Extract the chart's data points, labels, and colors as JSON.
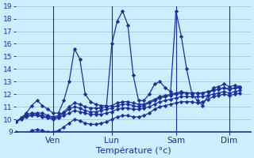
{
  "xlabel": "Température (°c)",
  "bg_color": "#cceeff",
  "grid_color": "#99ccdd",
  "line_color": "#1a2fa0",
  "ylim": [
    9,
    19
  ],
  "yticks": [
    9,
    10,
    11,
    12,
    13,
    14,
    15,
    16,
    17,
    18,
    19
  ],
  "xlim": [
    0,
    44
  ],
  "xtick_positions": [
    7,
    18,
    30,
    40
  ],
  "xtick_labels": [
    "Ven",
    "Lun",
    "Sam",
    "Dim"
  ],
  "vlines": [
    7,
    18,
    30,
    40
  ],
  "series": [
    [
      9.8,
      10.1,
      10.5,
      11.1,
      11.5,
      11.1,
      10.8,
      10.5,
      10.5,
      11.5,
      13.0,
      15.6,
      14.8,
      12.0,
      11.4,
      11.2,
      11.1,
      11.1,
      16.0,
      17.8,
      18.6,
      17.5,
      13.5,
      11.5,
      11.5,
      12.0,
      12.8,
      13.0,
      12.5,
      12.2,
      18.6,
      16.6,
      14.0,
      12.0,
      11.5,
      11.1,
      11.9,
      12.5,
      12.6,
      12.8,
      12.6,
      12.7,
      12.6
    ],
    [
      9.8,
      10.1,
      10.4,
      10.5,
      10.5,
      10.5,
      10.3,
      10.2,
      10.3,
      10.6,
      11.0,
      11.3,
      11.2,
      11.0,
      10.9,
      10.9,
      10.9,
      11.0,
      11.1,
      11.3,
      11.4,
      11.4,
      11.3,
      11.2,
      11.2,
      11.4,
      11.6,
      11.8,
      11.9,
      12.0,
      12.1,
      12.2,
      12.1,
      12.1,
      12.1,
      12.1,
      12.2,
      12.3,
      12.4,
      12.5,
      12.4,
      12.5,
      12.6
    ],
    [
      9.0,
      8.8,
      8.9,
      9.1,
      9.2,
      9.1,
      9.0,
      9.0,
      9.1,
      9.4,
      9.7,
      10.0,
      9.9,
      9.7,
      9.6,
      9.6,
      9.7,
      9.8,
      10.0,
      10.2,
      10.3,
      10.3,
      10.2,
      10.2,
      10.3,
      10.5,
      10.8,
      11.0,
      11.1,
      11.2,
      11.3,
      11.4,
      11.4,
      11.4,
      11.3,
      11.4,
      11.6,
      11.8,
      11.9,
      12.0,
      11.9,
      12.0,
      12.1
    ],
    [
      9.8,
      10.0,
      10.2,
      10.3,
      10.3,
      10.2,
      10.1,
      10.0,
      10.1,
      10.3,
      10.5,
      10.7,
      10.6,
      10.5,
      10.4,
      10.4,
      10.4,
      10.5,
      10.6,
      10.8,
      10.9,
      10.9,
      10.8,
      10.8,
      10.9,
      11.0,
      11.2,
      11.4,
      11.5,
      11.6,
      11.7,
      11.8,
      11.8,
      11.8,
      11.8,
      11.8,
      11.9,
      12.0,
      12.1,
      12.2,
      12.1,
      12.2,
      12.3
    ],
    [
      9.8,
      10.1,
      10.3,
      10.4,
      10.4,
      10.3,
      10.2,
      10.1,
      10.2,
      10.5,
      10.8,
      11.0,
      10.9,
      10.7,
      10.6,
      10.6,
      10.7,
      10.8,
      10.9,
      11.1,
      11.2,
      11.2,
      11.1,
      11.0,
      11.1,
      11.3,
      11.5,
      11.7,
      11.8,
      11.9,
      12.0,
      12.1,
      12.1,
      12.1,
      12.1,
      12.1,
      12.2,
      12.3,
      12.4,
      12.5,
      12.4,
      12.5,
      12.5
    ]
  ]
}
